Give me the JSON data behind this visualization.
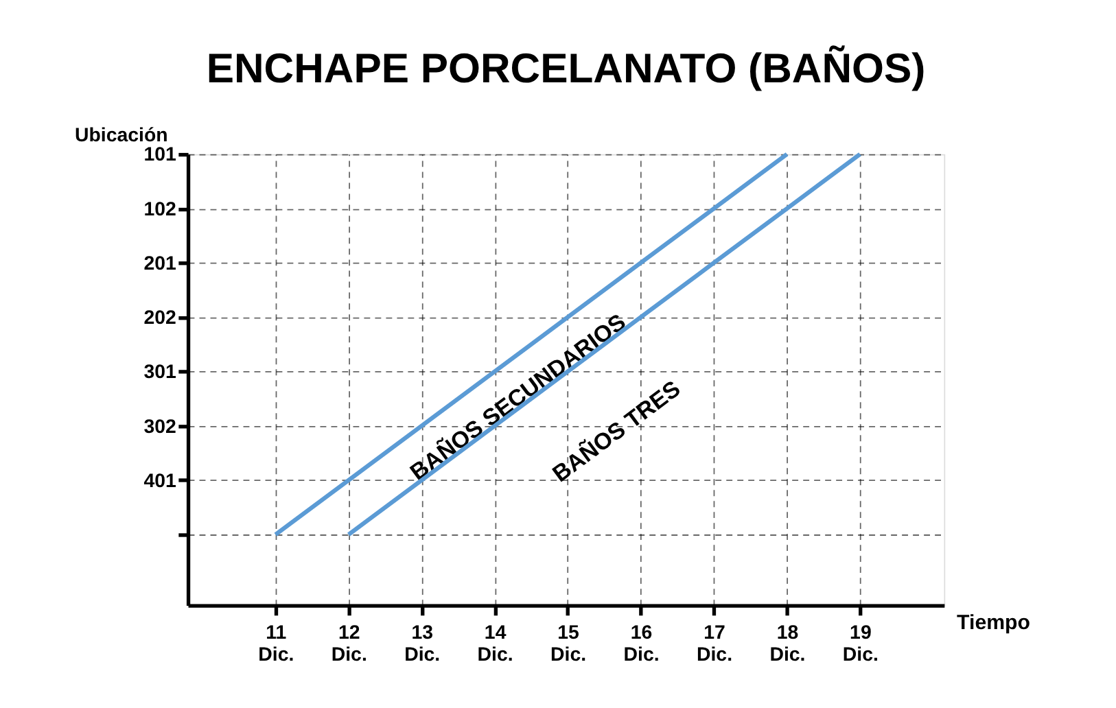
{
  "chart_data": {
    "type": "line",
    "orientation": "horizontal",
    "title": "ENCHAPE PORCELANATO (BAÑOS)",
    "xlabel": "Tiempo",
    "ylabel": "Ubicación",
    "categories": [
      "101",
      "102",
      "201",
      "202",
      "301",
      "302",
      "401",
      null
    ],
    "xlim": [
      9.8,
      20.15
    ],
    "xticks": [
      {
        "value": 11,
        "label": "11 Dic."
      },
      {
        "value": 12,
        "label": "12 Dic."
      },
      {
        "value": 13,
        "label": "13 Dic."
      },
      {
        "value": 14,
        "label": "14 Dic."
      },
      {
        "value": 15,
        "label": "15 Dic."
      },
      {
        "value": 16,
        "label": "16 Dic."
      },
      {
        "value": 17,
        "label": "17 Dic."
      },
      {
        "value": 18,
        "label": "18 Dic."
      },
      {
        "value": 19,
        "label": "19 Dic."
      }
    ],
    "grid": true,
    "marker": "none",
    "line_style": "solid",
    "series": [
      {
        "name": "BAÑOS SECUNDARIOS",
        "color": "#5b9bd5",
        "values": [
          18,
          17,
          16,
          15,
          14,
          13,
          12,
          11
        ]
      },
      {
        "name": "BAÑOS TRES",
        "color": "#5b9bd5",
        "values": [
          19,
          18,
          17,
          16,
          15,
          14,
          13,
          12
        ]
      }
    ]
  }
}
